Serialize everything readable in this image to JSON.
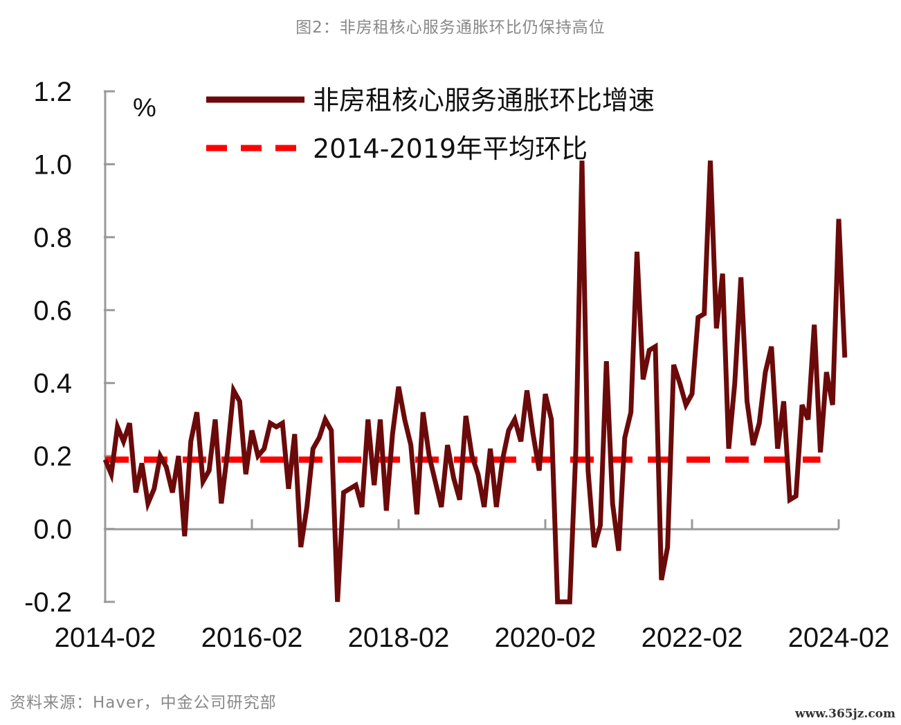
{
  "figure_title": "图2：非房租核心服务通胀环比仍保持高位",
  "source_note": "资料来源：Haver，中金公司研究部",
  "watermark": "www.365jz.com",
  "chart_data": {
    "type": "line",
    "unit": "%",
    "ylim": [
      -0.2,
      1.2
    ],
    "y_ticks": [
      "-0.2",
      "0.0",
      "0.2",
      "0.4",
      "0.6",
      "0.8",
      "1.0",
      "1.2"
    ],
    "x_ticks": [
      "2014-02",
      "2016-02",
      "2018-02",
      "2020-02",
      "2022-02",
      "2024-02"
    ],
    "x_range": [
      "2014-02",
      "2024-02"
    ],
    "legend_position": "top",
    "grid": false,
    "colors": {
      "series": "#6b0a0a",
      "average": "#ff0000",
      "axis": "#999999"
    },
    "series": [
      {
        "name": "非房租核心服务通胀环比增速",
        "style": "solid",
        "start": "2014-02",
        "values": [
          0.19,
          0.15,
          0.28,
          0.24,
          0.29,
          0.1,
          0.18,
          0.07,
          0.11,
          0.2,
          0.17,
          0.1,
          0.2,
          -0.02,
          0.24,
          0.32,
          0.13,
          0.16,
          0.3,
          0.07,
          0.21,
          0.38,
          0.35,
          0.15,
          0.27,
          0.2,
          0.22,
          0.29,
          0.28,
          0.29,
          0.11,
          0.26,
          -0.05,
          0.06,
          0.22,
          0.25,
          0.3,
          0.27,
          -0.22,
          0.1,
          0.11,
          0.12,
          0.06,
          0.3,
          0.12,
          0.3,
          0.05,
          0.26,
          0.39,
          0.3,
          0.23,
          0.04,
          0.32,
          0.2,
          0.13,
          0.06,
          0.23,
          0.14,
          0.08,
          0.31,
          0.2,
          0.15,
          0.06,
          0.22,
          0.06,
          0.19,
          0.27,
          0.3,
          0.24,
          0.38,
          0.26,
          0.16,
          0.37,
          0.3,
          -0.22,
          -0.22,
          -0.22,
          0.22,
          1.01,
          0.16,
          -0.05,
          0.01,
          0.46,
          0.07,
          -0.06,
          0.25,
          0.32,
          0.76,
          0.41,
          0.49,
          0.5,
          -0.14,
          -0.05,
          0.45,
          0.4,
          0.34,
          0.37,
          0.58,
          0.59,
          1.01,
          0.55,
          0.7,
          0.22,
          0.4,
          0.69,
          0.35,
          0.23,
          0.29,
          0.43,
          0.5,
          0.22,
          0.35,
          0.08,
          0.09,
          0.34,
          0.3,
          0.56,
          0.21,
          0.43,
          0.34,
          0.85,
          0.47
        ]
      },
      {
        "name": "2014-2019年平均环比",
        "style": "dashed",
        "x_start": "2014-02",
        "x_end": "2023-11",
        "value": 0.19
      }
    ]
  }
}
